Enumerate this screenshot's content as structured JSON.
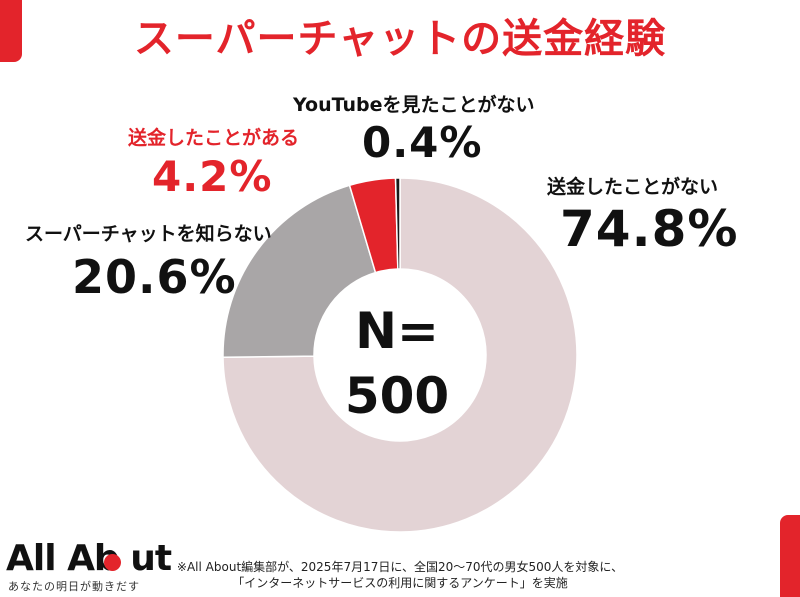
{
  "title": "スーパーチャットの送金経験",
  "center": {
    "n_label": "N=",
    "n_value": "500"
  },
  "chart_data": {
    "type": "pie",
    "donut": true,
    "categories": [
      "送金したことがない",
      "スーパーチャットを知らない",
      "送金したことがある",
      "YouTubeを見たことがない"
    ],
    "values": [
      74.8,
      20.6,
      4.2,
      0.4
    ],
    "value_labels": [
      "74.8%",
      "20.6%",
      "4.2%",
      "0.4%"
    ],
    "colors": [
      "#e3d3d5",
      "#a9a6a7",
      "#e3242b",
      "#1a1a1a"
    ],
    "start": "12 o'clock",
    "direction": "clockwise",
    "sample_size": 500
  },
  "footer": {
    "logo_text": "All Ab  ut",
    "tagline": "あなたの明日が動きだす",
    "note_line1": "※All About編集部が、2025年7月17日に、全国20〜70代の男女500人を対象に、",
    "note_line2": "「インターネットサービスの利用に関するアンケート」を実施"
  },
  "colors": {
    "accent": "#e3242b"
  }
}
